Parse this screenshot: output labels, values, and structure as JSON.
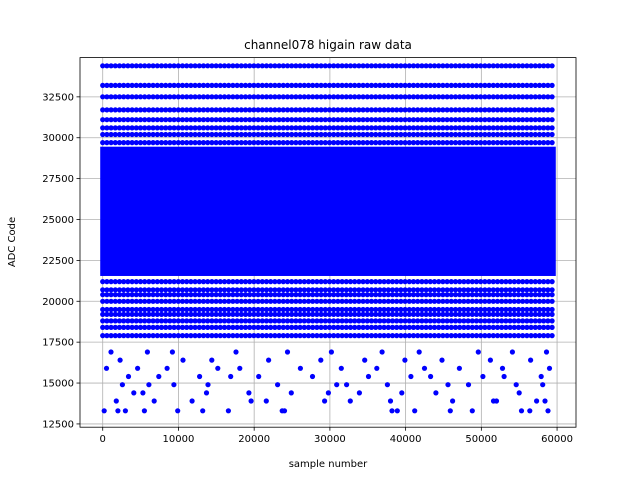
{
  "chart_data": {
    "type": "scatter",
    "title": "channel078 higain raw data",
    "xlabel": "sample number",
    "ylabel": "ADC Code",
    "xlim": [
      -3000,
      62500
    ],
    "ylim": [
      12300,
      34900
    ],
    "x_ticks": [
      0,
      10000,
      20000,
      30000,
      40000,
      50000,
      60000
    ],
    "y_ticks": [
      12500,
      15000,
      17500,
      20000,
      22500,
      25000,
      27500,
      30000,
      32500
    ],
    "x_tick_labels": [
      "0",
      "10000",
      "20000",
      "30000",
      "40000",
      "50000",
      "60000"
    ],
    "y_tick_labels": [
      "12500",
      "15000",
      "17500",
      "20000",
      "22500",
      "25000",
      "27500",
      "30000",
      "32500"
    ],
    "grid": true,
    "marker_color": "#0000ff",
    "series": [
      {
        "sample_range": [
          0,
          59500
        ],
        "dense_band": [
          21700,
          29300
        ],
        "regular_levels": [
          34400,
          33200,
          32500,
          31700,
          31100,
          30600,
          30200,
          29700,
          21200,
          20700,
          20400,
          20000,
          19500,
          19200,
          18800,
          18400,
          17900
        ],
        "sparse_points": [
          [
            200,
            13300
          ],
          [
            2000,
            13300
          ],
          [
            3000,
            13300
          ],
          [
            5500,
            13300
          ],
          [
            9900,
            13300
          ],
          [
            13200,
            13300
          ],
          [
            16600,
            13300
          ],
          [
            23700,
            13300
          ],
          [
            24000,
            13300
          ],
          [
            38200,
            13300
          ],
          [
            38900,
            13300
          ],
          [
            41200,
            13300
          ],
          [
            45900,
            13300
          ],
          [
            48800,
            13300
          ],
          [
            55300,
            13300
          ],
          [
            56400,
            13300
          ],
          [
            58800,
            13300
          ],
          [
            1800,
            13900
          ],
          [
            6800,
            13900
          ],
          [
            11800,
            13900
          ],
          [
            19600,
            13900
          ],
          [
            21600,
            13900
          ],
          [
            29300,
            13900
          ],
          [
            32700,
            13900
          ],
          [
            38000,
            13900
          ],
          [
            46200,
            13900
          ],
          [
            51600,
            13900
          ],
          [
            52000,
            13900
          ],
          [
            57300,
            13900
          ],
          [
            58400,
            13900
          ],
          [
            4100,
            14400
          ],
          [
            5300,
            14400
          ],
          [
            13700,
            14400
          ],
          [
            19300,
            14400
          ],
          [
            24900,
            14400
          ],
          [
            29800,
            14400
          ],
          [
            33900,
            14400
          ],
          [
            39500,
            14400
          ],
          [
            44000,
            14400
          ],
          [
            55000,
            14400
          ],
          [
            2600,
            14900
          ],
          [
            6100,
            14900
          ],
          [
            9400,
            14900
          ],
          [
            13900,
            14900
          ],
          [
            23100,
            14900
          ],
          [
            30900,
            14900
          ],
          [
            32200,
            14900
          ],
          [
            37600,
            14900
          ],
          [
            45600,
            14900
          ],
          [
            48300,
            14900
          ],
          [
            54600,
            14900
          ],
          [
            58100,
            14900
          ],
          [
            3400,
            15400
          ],
          [
            7400,
            15400
          ],
          [
            12800,
            15400
          ],
          [
            16900,
            15400
          ],
          [
            20600,
            15400
          ],
          [
            27700,
            15400
          ],
          [
            35100,
            15400
          ],
          [
            40700,
            15400
          ],
          [
            43300,
            15400
          ],
          [
            50200,
            15400
          ],
          [
            53000,
            15400
          ],
          [
            57900,
            15400
          ],
          [
            500,
            15900
          ],
          [
            4600,
            15900
          ],
          [
            8500,
            15900
          ],
          [
            15200,
            15900
          ],
          [
            18100,
            15900
          ],
          [
            26100,
            15900
          ],
          [
            31500,
            15900
          ],
          [
            36200,
            15900
          ],
          [
            42500,
            15900
          ],
          [
            47100,
            15900
          ],
          [
            52800,
            15900
          ],
          [
            59000,
            15900
          ],
          [
            2300,
            16400
          ],
          [
            10600,
            16400
          ],
          [
            14400,
            16400
          ],
          [
            21900,
            16400
          ],
          [
            28800,
            16400
          ],
          [
            34600,
            16400
          ],
          [
            39900,
            16400
          ],
          [
            44800,
            16400
          ],
          [
            51200,
            16400
          ],
          [
            56500,
            16400
          ],
          [
            1100,
            16900
          ],
          [
            5900,
            16900
          ],
          [
            9200,
            16900
          ],
          [
            17600,
            16900
          ],
          [
            24400,
            16900
          ],
          [
            30200,
            16900
          ],
          [
            36900,
            16900
          ],
          [
            41800,
            16900
          ],
          [
            49600,
            16900
          ],
          [
            54100,
            16900
          ],
          [
            58600,
            16900
          ]
        ]
      }
    ]
  }
}
